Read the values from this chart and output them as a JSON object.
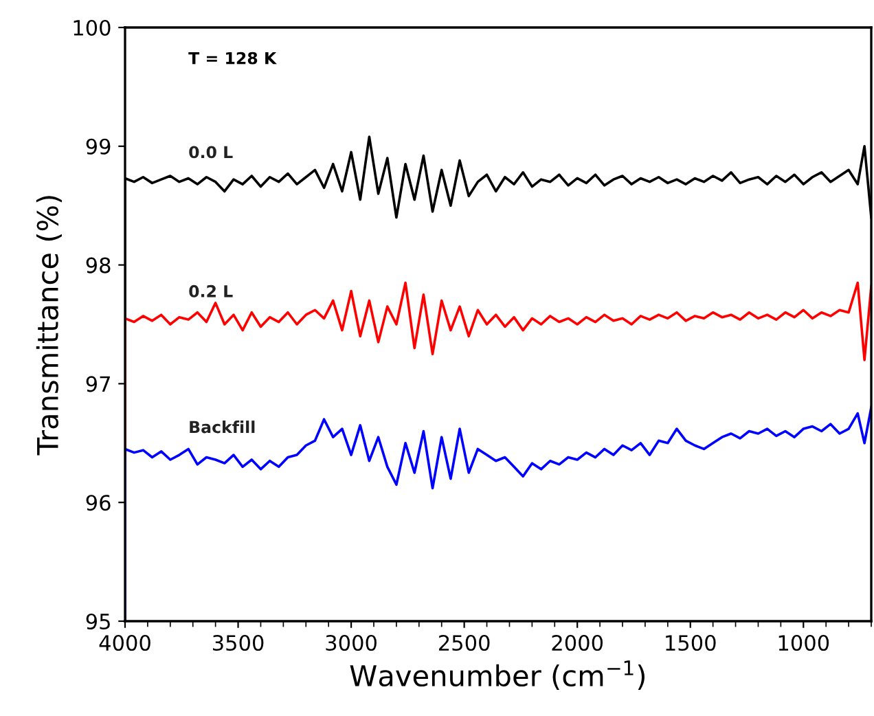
{
  "chart_data": {
    "type": "line",
    "xlabel": "Wavenumber (cm$^{−1}$)",
    "ylabel": "Transmittance (%)",
    "annotations": [
      "T = 128 K"
    ],
    "xlim": [
      4000,
      700
    ],
    "xticks": [
      4000,
      3500,
      3000,
      2500,
      2000,
      1500,
      1000
    ],
    "ylim": [
      95,
      100
    ],
    "yticks": [
      95,
      96,
      97,
      98,
      99,
      100
    ],
    "grid": false,
    "legend": false,
    "x": [
      4000,
      4000,
      3960,
      3920,
      3880,
      3840,
      3800,
      3760,
      3720,
      3680,
      3640,
      3600,
      3560,
      3520,
      3480,
      3440,
      3400,
      3360,
      3320,
      3280,
      3240,
      3200,
      3160,
      3120,
      3080,
      3040,
      3000,
      2960,
      2920,
      2880,
      2840,
      2800,
      2760,
      2720,
      2680,
      2640,
      2600,
      2560,
      2520,
      2480,
      2440,
      2400,
      2360,
      2320,
      2280,
      2240,
      2200,
      2160,
      2120,
      2080,
      2040,
      2000,
      1960,
      1920,
      1880,
      1840,
      1800,
      1760,
      1720,
      1680,
      1640,
      1600,
      1560,
      1520,
      1480,
      1440,
      1400,
      1360,
      1320,
      1280,
      1240,
      1200,
      1160,
      1120,
      1080,
      1040,
      1000,
      960,
      920,
      880,
      840,
      800,
      760,
      730,
      700
    ],
    "series": [
      {
        "name": "0.0 L",
        "color": "#000000",
        "values": [
          95,
          98.73,
          98.7,
          98.74,
          98.69,
          98.72,
          98.75,
          98.7,
          98.73,
          98.68,
          98.74,
          98.7,
          98.62,
          98.72,
          98.68,
          98.75,
          98.66,
          98.74,
          98.7,
          98.77,
          98.68,
          98.74,
          98.8,
          98.65,
          98.85,
          98.62,
          98.95,
          98.55,
          99.08,
          98.6,
          98.9,
          98.4,
          98.85,
          98.55,
          98.92,
          98.45,
          98.8,
          98.5,
          98.88,
          98.58,
          98.7,
          98.76,
          98.62,
          98.74,
          98.68,
          98.78,
          98.66,
          98.72,
          98.7,
          98.76,
          98.67,
          98.73,
          98.69,
          98.76,
          98.67,
          98.72,
          98.75,
          98.68,
          98.73,
          98.7,
          98.74,
          98.69,
          98.72,
          98.68,
          98.73,
          98.7,
          98.75,
          98.71,
          98.78,
          98.69,
          98.72,
          98.74,
          98.68,
          98.75,
          98.7,
          98.76,
          98.68,
          98.74,
          98.78,
          98.7,
          98.75,
          98.8,
          98.68,
          99.0,
          98.4
        ]
      },
      {
        "name": "0.2 L",
        "color": "#ff0000",
        "values": [
          95,
          97.55,
          97.52,
          97.57,
          97.53,
          97.58,
          97.5,
          97.56,
          97.54,
          97.6,
          97.52,
          97.68,
          97.5,
          97.58,
          97.45,
          97.6,
          97.48,
          97.56,
          97.52,
          97.6,
          97.5,
          97.58,
          97.62,
          97.55,
          97.7,
          97.45,
          97.78,
          97.4,
          97.7,
          97.35,
          97.65,
          97.5,
          97.85,
          97.3,
          97.75,
          97.25,
          97.7,
          97.45,
          97.65,
          97.4,
          97.62,
          97.5,
          97.58,
          97.48,
          97.56,
          97.45,
          97.55,
          97.5,
          97.57,
          97.52,
          97.55,
          97.5,
          97.56,
          97.52,
          97.58,
          97.53,
          97.55,
          97.5,
          97.57,
          97.54,
          97.58,
          97.55,
          97.6,
          97.53,
          97.57,
          97.55,
          97.6,
          97.56,
          97.58,
          97.54,
          97.6,
          97.55,
          97.58,
          97.54,
          97.6,
          97.56,
          97.62,
          97.55,
          97.6,
          97.57,
          97.62,
          97.6,
          97.85,
          97.2,
          97.82
        ]
      },
      {
        "name": "Backfill",
        "color": "#0000ff",
        "values": [
          95,
          96.45,
          96.42,
          96.44,
          96.38,
          96.43,
          96.36,
          96.4,
          96.45,
          96.32,
          96.38,
          96.36,
          96.33,
          96.4,
          96.3,
          96.36,
          96.28,
          96.35,
          96.3,
          96.38,
          96.4,
          96.48,
          96.52,
          96.7,
          96.55,
          96.62,
          96.4,
          96.65,
          96.35,
          96.55,
          96.3,
          96.15,
          96.5,
          96.25,
          96.6,
          96.12,
          96.55,
          96.2,
          96.62,
          96.25,
          96.45,
          96.4,
          96.35,
          96.38,
          96.3,
          96.22,
          96.33,
          96.28,
          96.35,
          96.32,
          96.38,
          96.36,
          96.42,
          96.38,
          96.45,
          96.4,
          96.48,
          96.44,
          96.5,
          96.4,
          96.52,
          96.5,
          96.62,
          96.52,
          96.48,
          96.45,
          96.5,
          96.55,
          96.58,
          96.54,
          96.6,
          96.58,
          96.62,
          96.56,
          96.6,
          96.55,
          96.62,
          96.64,
          96.6,
          96.66,
          96.58,
          96.62,
          96.75,
          96.5,
          96.8
        ]
      }
    ]
  }
}
